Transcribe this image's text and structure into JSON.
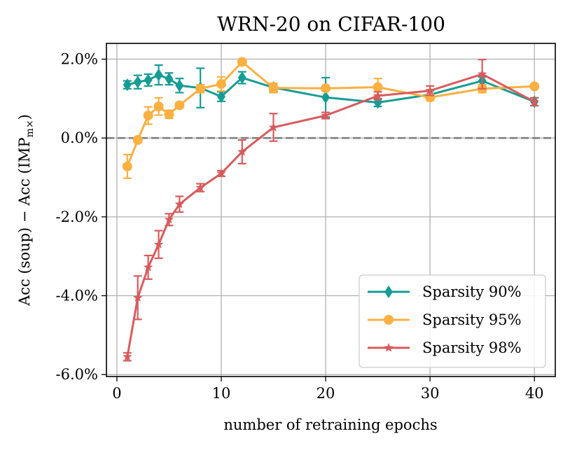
{
  "chart_data": {
    "type": "line",
    "title": "WRN-20 on CIFAR-100",
    "xlabel": "number of retraining epochs",
    "ylabel": "Acc (soup) − Acc (IMP",
    "ylabel_sub": "m×",
    "ylabel_close": ")",
    "xlim": [
      -1,
      42
    ],
    "ylim": [
      -6.05,
      2.4
    ],
    "x_ticks": [
      0,
      10,
      20,
      30,
      40
    ],
    "x_tick_labels": [
      "0",
      "10",
      "20",
      "30",
      "40"
    ],
    "y_ticks": [
      2.0,
      0.0,
      -2.0,
      -4.0,
      -6.0
    ],
    "y_tick_labels": [
      "2.0%",
      "0.0%",
      "-2.0%",
      "-4.0%",
      "-6.0%"
    ],
    "grid": true,
    "reference_line": 0,
    "legend_position": "lower-right",
    "series": [
      {
        "name": "Sparsity 90%",
        "color": "#169c95",
        "marker": "diamond",
        "x": [
          1,
          2,
          3,
          4,
          5,
          6,
          8,
          10,
          12,
          15,
          20,
          25,
          30,
          35,
          40
        ],
        "y": [
          1.35,
          1.42,
          1.47,
          1.6,
          1.5,
          1.33,
          1.27,
          1.05,
          1.53,
          1.28,
          1.03,
          0.9,
          1.1,
          1.45,
          0.92
        ],
        "err": [
          0.1,
          0.17,
          0.15,
          0.25,
          0.15,
          0.18,
          0.5,
          0.12,
          0.15,
          0.1,
          0.5,
          0.1,
          0.1,
          0.1,
          0.1
        ]
      },
      {
        "name": "Sparsity 95%",
        "color": "#fbb040",
        "marker": "circle",
        "x": [
          1,
          2,
          3,
          4,
          5,
          6,
          8,
          10,
          12,
          15,
          20,
          25,
          30,
          35,
          40
        ],
        "y": [
          -0.72,
          -0.05,
          0.57,
          0.8,
          0.6,
          0.83,
          1.25,
          1.37,
          1.93,
          1.27,
          1.26,
          1.29,
          1.03,
          1.25,
          1.31
        ],
        "err": [
          0.3,
          0.05,
          0.22,
          0.22,
          0.1,
          0.07,
          0.1,
          0.18,
          0.07,
          0.12,
          0.05,
          0.22,
          0.08,
          0.1,
          0.05
        ]
      },
      {
        "name": "Sparsity 98%",
        "color": "#d95b5d",
        "marker": "star",
        "x": [
          1,
          2,
          3,
          4,
          5,
          6,
          8,
          10,
          12,
          15,
          20,
          25,
          30,
          35,
          40
        ],
        "y": [
          -5.55,
          -4.05,
          -3.28,
          -2.7,
          -2.07,
          -1.68,
          -1.26,
          -0.9,
          -0.35,
          0.27,
          0.57,
          1.07,
          1.2,
          1.62,
          0.92
        ],
        "err": [
          0.1,
          0.55,
          0.3,
          0.35,
          0.15,
          0.2,
          0.1,
          0.07,
          0.3,
          0.35,
          0.08,
          0.1,
          0.12,
          0.37,
          0.1
        ]
      }
    ]
  }
}
